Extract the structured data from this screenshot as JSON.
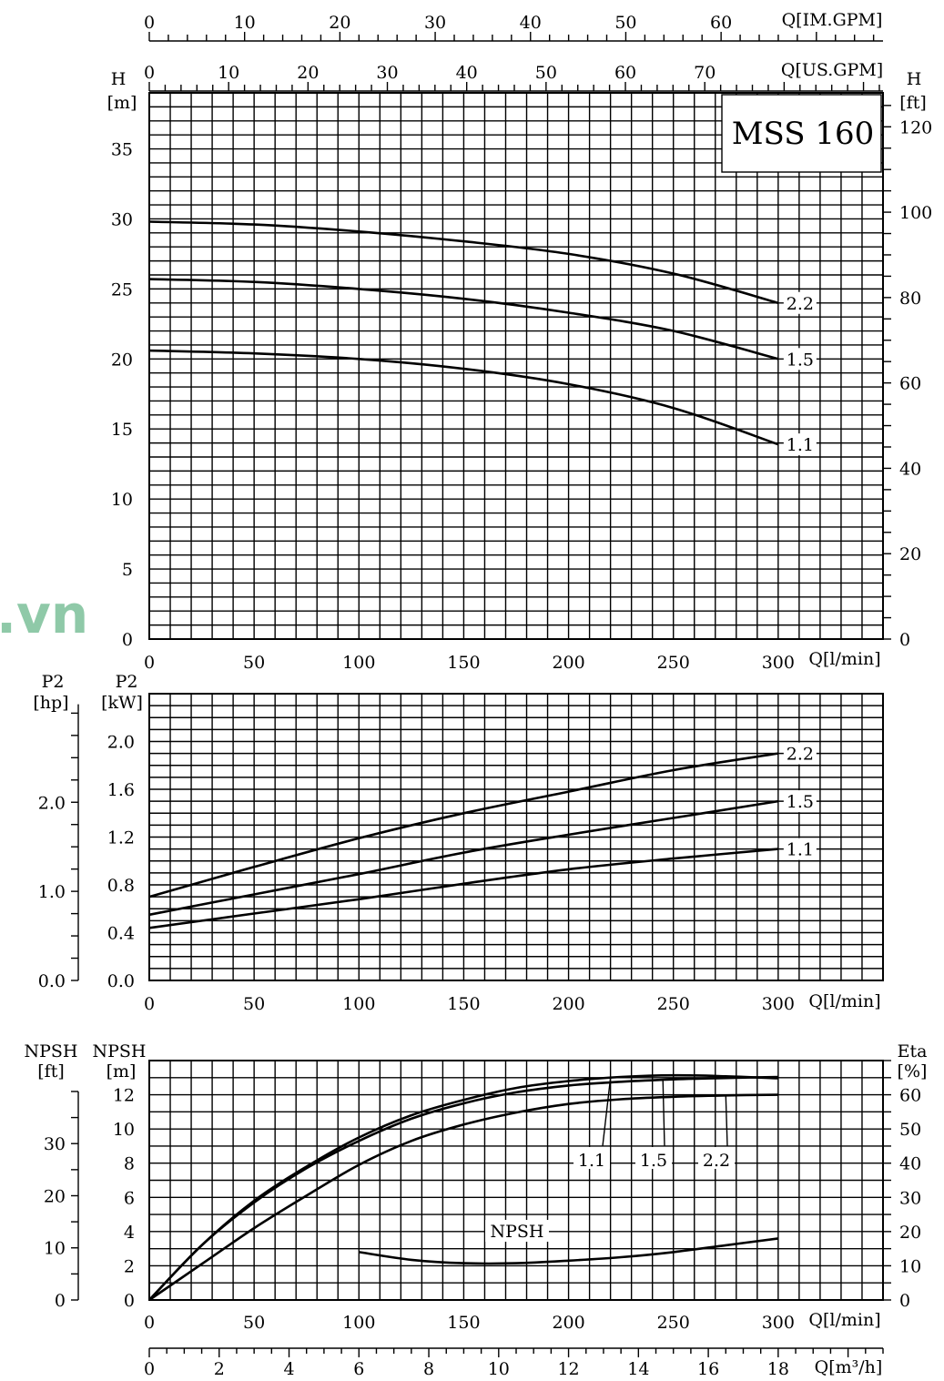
{
  "chart_data": [
    {
      "type": "line",
      "name": "head",
      "model_label": "MSS 160",
      "watermark": ".vn",
      "left_unit": "[m]",
      "left_letter": "H",
      "right_unit": "[ft]",
      "right_letter": "H",
      "q_unit": "Q[l/min]",
      "ylim": [
        0,
        39
      ],
      "xlim": [
        0,
        350
      ],
      "y_ticks": [
        "0",
        "5",
        "10",
        "15",
        "20",
        "25",
        "30",
        "35"
      ],
      "y_tick_values": [
        0,
        5,
        10,
        15,
        20,
        25,
        30,
        35
      ],
      "ft_ticks": [
        "0",
        "20",
        "40",
        "60",
        "80",
        "100",
        "120"
      ],
      "ft_tick_values": [
        0,
        20,
        40,
        60,
        80,
        100,
        120
      ],
      "x_ticks": [
        "0",
        "50",
        "100",
        "150",
        "200",
        "250",
        "300"
      ],
      "x_tick_values": [
        0,
        50,
        100,
        150,
        200,
        250,
        300
      ],
      "top_axes": [
        {
          "unit": "Q[IM.GPM]",
          "ticks": [
            "0",
            "10",
            "20",
            "30",
            "40",
            "50",
            "60"
          ],
          "values": [
            0,
            10,
            20,
            30,
            40,
            50,
            60
          ],
          "per_lmin": 0.21997
        },
        {
          "unit": "Q[US.GPM]",
          "ticks": [
            "0",
            "10",
            "20",
            "30",
            "40",
            "50",
            "60",
            "70"
          ],
          "values": [
            0,
            10,
            20,
            30,
            40,
            50,
            60,
            70
          ],
          "per_lmin": 0.264172
        }
      ],
      "series": [
        {
          "name": "2.2",
          "x": [
            0,
            50,
            100,
            150,
            200,
            250,
            300
          ],
          "y": [
            29.8,
            29.6,
            29.1,
            28.4,
            27.5,
            26.1,
            24.0
          ]
        },
        {
          "name": "1.5",
          "x": [
            0,
            50,
            100,
            150,
            200,
            250,
            300
          ],
          "y": [
            25.7,
            25.5,
            25.0,
            24.3,
            23.3,
            22.0,
            20.0
          ]
        },
        {
          "name": "1.1",
          "x": [
            0,
            50,
            100,
            150,
            200,
            250,
            300
          ],
          "y": [
            20.6,
            20.4,
            20.0,
            19.3,
            18.2,
            16.5,
            13.9
          ]
        }
      ]
    },
    {
      "type": "line",
      "name": "power",
      "left_unit": "[hp]",
      "left_letter": "P2",
      "right_unit": "[kW]",
      "right_letter": "P2",
      "q_unit": "Q[l/min]",
      "ylim": [
        0,
        2.4
      ],
      "xlim": [
        0,
        350
      ],
      "y_ticks": [
        "0.0",
        "0.4",
        "0.8",
        "1.2",
        "1.6",
        "2.0"
      ],
      "y_tick_values": [
        0,
        0.4,
        0.8,
        1.2,
        1.6,
        2.0
      ],
      "hp_ticks": [
        "0.0",
        "1.0",
        "2.0"
      ],
      "hp_tick_values": [
        0,
        1,
        2
      ],
      "x_ticks": [
        "0",
        "50",
        "100",
        "150",
        "200",
        "250",
        "300"
      ],
      "x_tick_values": [
        0,
        50,
        100,
        150,
        200,
        250,
        300
      ],
      "series": [
        {
          "name": "2.2",
          "x": [
            0,
            50,
            100,
            150,
            200,
            250,
            300
          ],
          "y": [
            0.7,
            0.95,
            1.19,
            1.4,
            1.58,
            1.76,
            1.9
          ]
        },
        {
          "name": "1.5",
          "x": [
            0,
            50,
            100,
            150,
            200,
            250,
            300
          ],
          "y": [
            0.55,
            0.72,
            0.89,
            1.07,
            1.22,
            1.36,
            1.5
          ]
        },
        {
          "name": "1.1",
          "x": [
            0,
            50,
            100,
            150,
            200,
            250,
            300
          ],
          "y": [
            0.44,
            0.56,
            0.68,
            0.81,
            0.93,
            1.02,
            1.1
          ]
        }
      ]
    },
    {
      "type": "line",
      "name": "npsh_eta",
      "left_unit": "[ft]",
      "left_letter": "NPSH",
      "mid_unit": "[m]",
      "mid_letter": "NPSH",
      "right_unit": "[%]",
      "right_letter": "Eta",
      "q_unit": "Q[l/min]",
      "m3h_unit": "Q[m³/h]",
      "npsh_label": "NPSH",
      "ylim": [
        0,
        14
      ],
      "xlim": [
        0,
        350
      ],
      "y_ticks": [
        "0",
        "2",
        "4",
        "6",
        "8",
        "10",
        "12"
      ],
      "y_tick_values": [
        0,
        2,
        4,
        6,
        8,
        10,
        12
      ],
      "eta_ticks": [
        "0",
        "10",
        "20",
        "30",
        "40",
        "50",
        "60"
      ],
      "eta_tick_values": [
        0,
        10,
        20,
        30,
        40,
        50,
        60
      ],
      "ft_ticks": [
        "0",
        "10",
        "20",
        "30"
      ],
      "ft_tick_values": [
        0,
        10,
        20,
        30
      ],
      "x_ticks": [
        "0",
        "50",
        "100",
        "150",
        "200",
        "250",
        "300"
      ],
      "x_tick_values": [
        0,
        50,
        100,
        150,
        200,
        250,
        300
      ],
      "m3h_ticks": [
        "0",
        "2",
        "4",
        "6",
        "8",
        "10",
        "12",
        "14",
        "16",
        "18"
      ],
      "m3h_tick_values": [
        0,
        2,
        4,
        6,
        8,
        10,
        12,
        14,
        16,
        18
      ],
      "eta_series": [
        {
          "name": "1.1",
          "x": [
            0,
            25,
            50,
            75,
            100,
            125,
            150,
            175,
            200,
            225,
            250,
            275,
            300
          ],
          "y": [
            0,
            16,
            29,
            39,
            47.5,
            54,
            58.5,
            62,
            64,
            65.2,
            65.7,
            65.4,
            64.8
          ]
        },
        {
          "name": "1.5",
          "x": [
            0,
            25,
            50,
            75,
            100,
            125,
            150,
            175,
            200,
            225,
            250,
            275,
            300
          ],
          "y": [
            0,
            16,
            28.5,
            38.5,
            46.5,
            53,
            57.5,
            60.7,
            62.7,
            63.8,
            64.5,
            64.9,
            65.2
          ]
        },
        {
          "name": "2.2",
          "x": [
            0,
            25,
            50,
            75,
            100,
            125,
            150,
            175,
            200,
            225,
            250,
            275,
            300
          ],
          "y": [
            0,
            10.5,
            21,
            30.5,
            39.5,
            46.5,
            51.3,
            54.8,
            57.3,
            58.7,
            59.4,
            59.8,
            60
          ]
        }
      ],
      "npsh_series": {
        "name": "NPSH",
        "x": [
          100,
          125,
          150,
          175,
          200,
          225,
          250,
          275,
          300
        ],
        "y": [
          2.8,
          2.35,
          2.15,
          2.15,
          2.3,
          2.5,
          2.8,
          3.2,
          3.6
        ]
      }
    }
  ]
}
